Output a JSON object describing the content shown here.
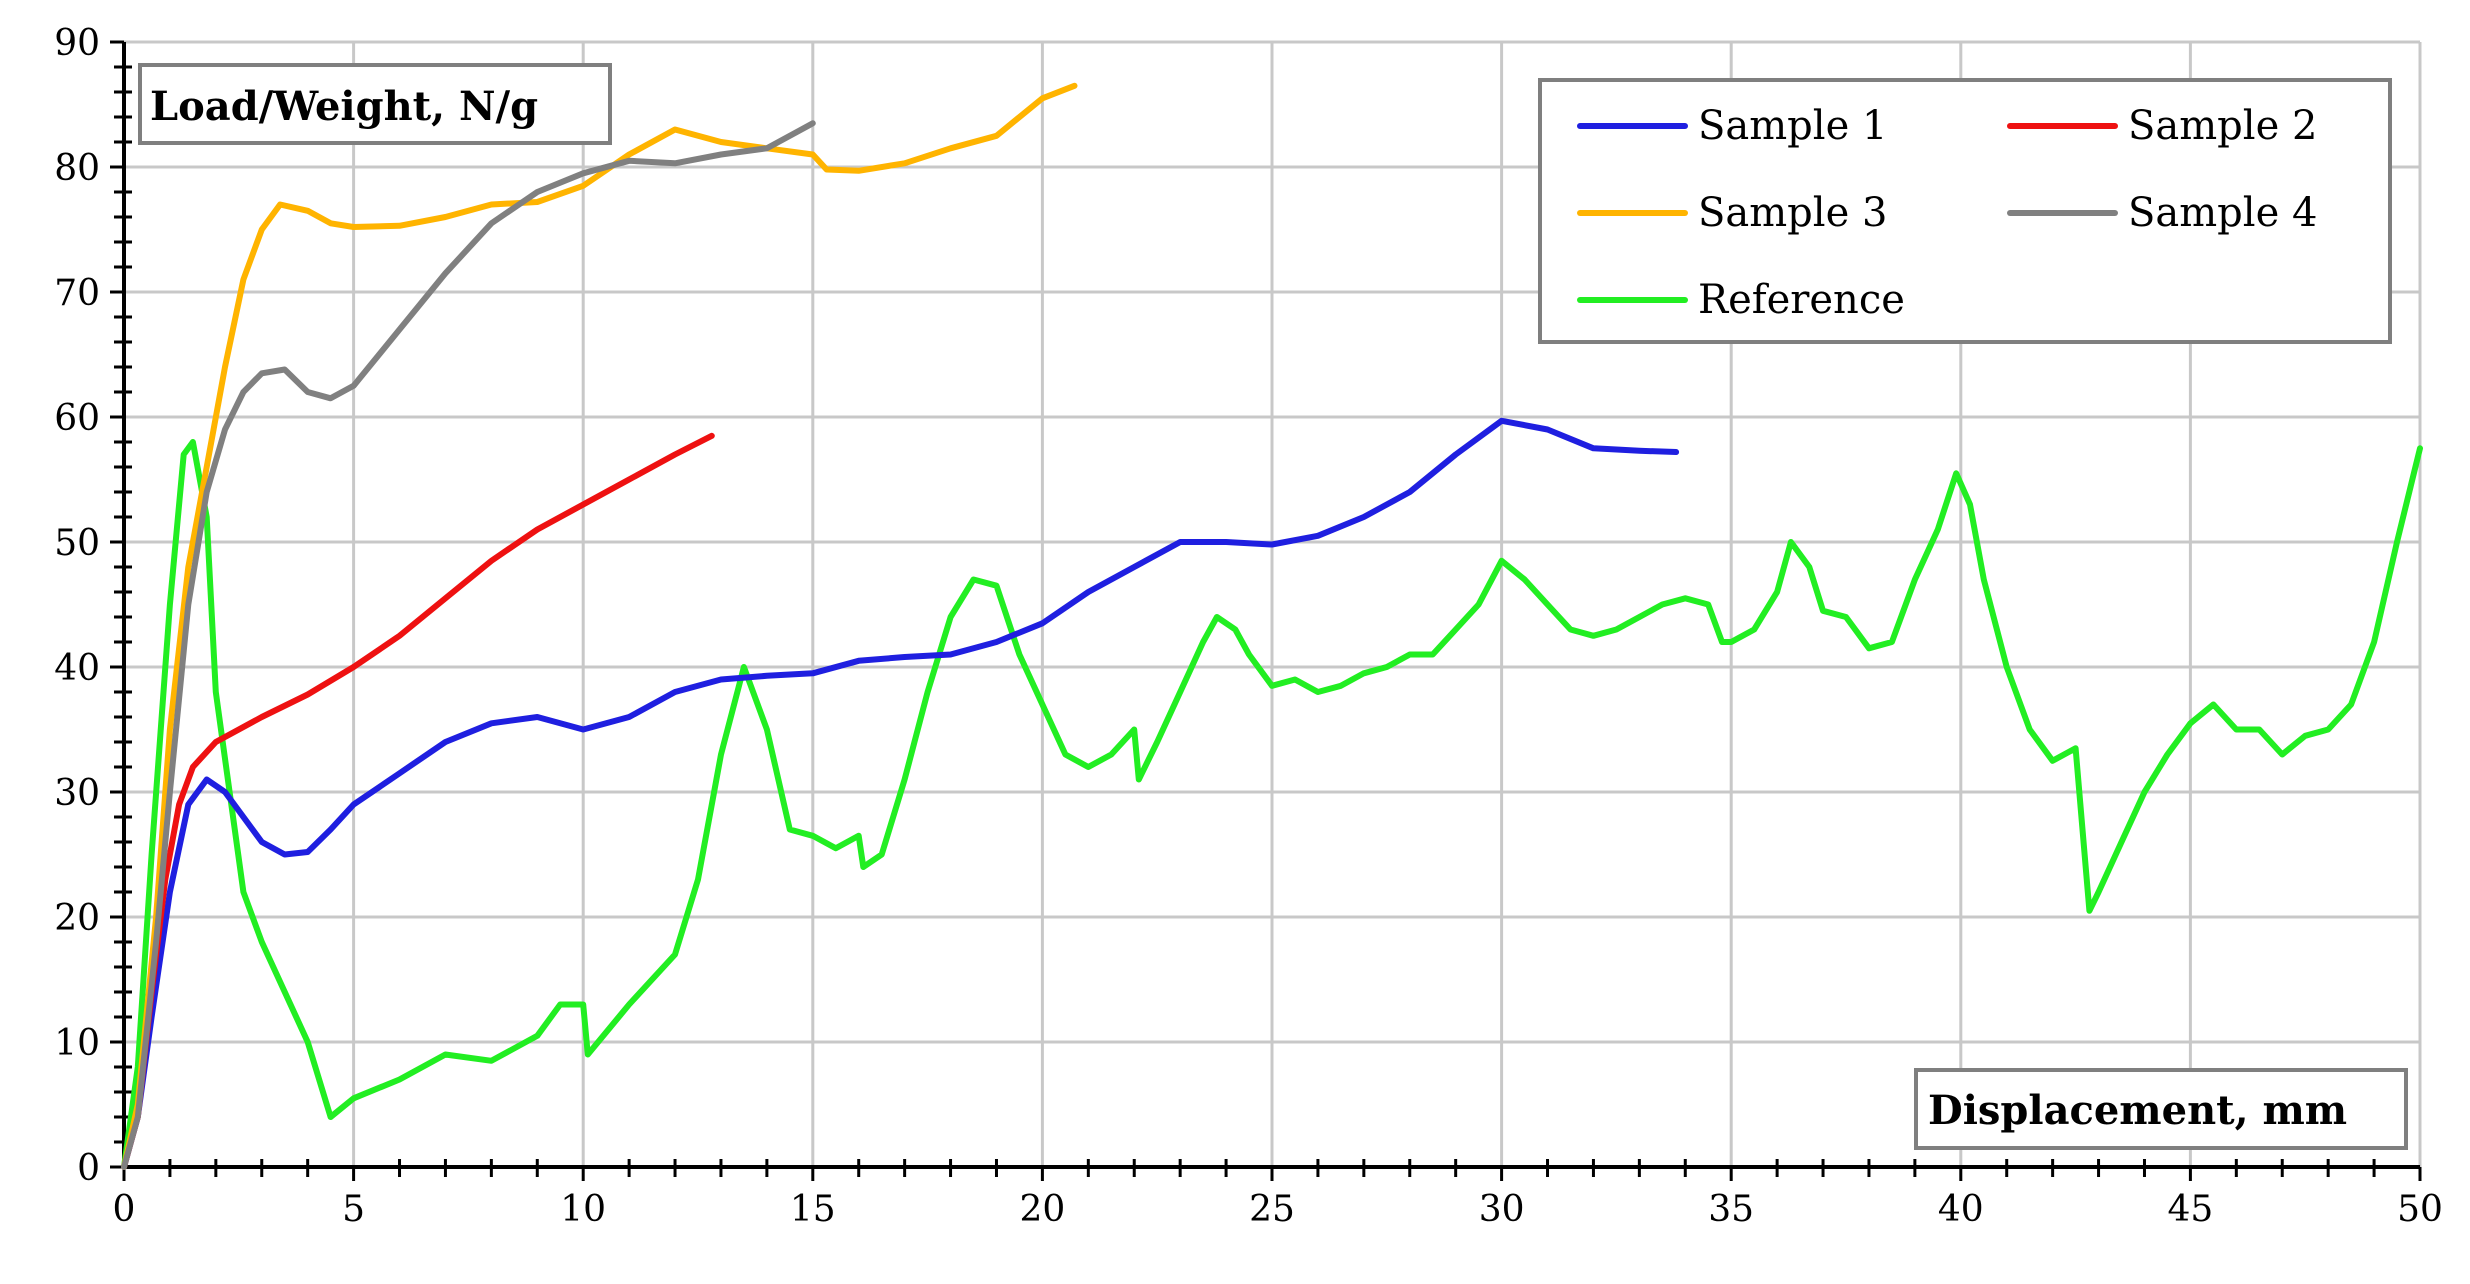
{
  "chart_data": {
    "type": "line",
    "xlabel": "Displacement, mm",
    "ylabel": "Load/Weight, N/g",
    "xlim": [
      0,
      50
    ],
    "ylim": [
      0,
      90
    ],
    "x_ticks": [
      "0",
      "5",
      "10",
      "15",
      "20",
      "25",
      "30",
      "35",
      "40",
      "45",
      "50"
    ],
    "y_ticks": [
      "0",
      "10",
      "20",
      "30",
      "40",
      "50",
      "60",
      "70",
      "80",
      "90"
    ],
    "grid": true,
    "legend_position": "top-right",
    "series": [
      {
        "name": "Sample 1",
        "color": "#1f1fe0",
        "points": [
          [
            0,
            0
          ],
          [
            0.3,
            4
          ],
          [
            0.6,
            12
          ],
          [
            1.0,
            22
          ],
          [
            1.4,
            29
          ],
          [
            1.8,
            31
          ],
          [
            2.2,
            30
          ],
          [
            2.6,
            28
          ],
          [
            3.0,
            26
          ],
          [
            3.5,
            25
          ],
          [
            4.0,
            25.2
          ],
          [
            4.5,
            27
          ],
          [
            5.0,
            29
          ],
          [
            6.0,
            31.5
          ],
          [
            7.0,
            34
          ],
          [
            8.0,
            35.5
          ],
          [
            9.0,
            36
          ],
          [
            10.0,
            35
          ],
          [
            11.0,
            36
          ],
          [
            12.0,
            38
          ],
          [
            13.0,
            39
          ],
          [
            14.0,
            39.3
          ],
          [
            15.0,
            39.5
          ],
          [
            16.0,
            40.5
          ],
          [
            17.0,
            40.8
          ],
          [
            18.0,
            41
          ],
          [
            19.0,
            42
          ],
          [
            20.0,
            43.5
          ],
          [
            21.0,
            46
          ],
          [
            22.0,
            48
          ],
          [
            23.0,
            50
          ],
          [
            24.0,
            50
          ],
          [
            25.0,
            49.8
          ],
          [
            26.0,
            50.5
          ],
          [
            27.0,
            52
          ],
          [
            28.0,
            54
          ],
          [
            29.0,
            57
          ],
          [
            30.0,
            59.7
          ],
          [
            31.0,
            59
          ],
          [
            32.0,
            57.5
          ],
          [
            33.0,
            57.3
          ],
          [
            33.8,
            57.2
          ]
        ]
      },
      {
        "name": "Sample 2",
        "color": "#ee1111",
        "points": [
          [
            0,
            0
          ],
          [
            0.3,
            4
          ],
          [
            0.6,
            14
          ],
          [
            0.9,
            23
          ],
          [
            1.2,
            29
          ],
          [
            1.5,
            32
          ],
          [
            2.0,
            34
          ],
          [
            3.0,
            36
          ],
          [
            4.0,
            37.8
          ],
          [
            5.0,
            40
          ],
          [
            6.0,
            42.5
          ],
          [
            7.0,
            45.5
          ],
          [
            8.0,
            48.5
          ],
          [
            9.0,
            51
          ],
          [
            10.0,
            53
          ],
          [
            11.0,
            55
          ],
          [
            12.0,
            57
          ],
          [
            12.8,
            58.5
          ]
        ]
      },
      {
        "name": "Sample 3",
        "color": "#ffb400",
        "points": [
          [
            0,
            0
          ],
          [
            0.3,
            5
          ],
          [
            0.7,
            20
          ],
          [
            1.0,
            35
          ],
          [
            1.4,
            48
          ],
          [
            1.8,
            56
          ],
          [
            2.2,
            64
          ],
          [
            2.6,
            71
          ],
          [
            3.0,
            75
          ],
          [
            3.4,
            77
          ],
          [
            4.0,
            76.5
          ],
          [
            4.5,
            75.5
          ],
          [
            5.0,
            75.2
          ],
          [
            6.0,
            75.3
          ],
          [
            7.0,
            76
          ],
          [
            8.0,
            77
          ],
          [
            9.0,
            77.2
          ],
          [
            10.0,
            78.5
          ],
          [
            11.0,
            81
          ],
          [
            12.0,
            83
          ],
          [
            13.0,
            82
          ],
          [
            14.0,
            81.5
          ],
          [
            15.0,
            81
          ],
          [
            15.3,
            79.8
          ],
          [
            16.0,
            79.7
          ],
          [
            17.0,
            80.3
          ],
          [
            18.0,
            81.5
          ],
          [
            19.0,
            82.5
          ],
          [
            20.0,
            85.5
          ],
          [
            20.7,
            86.5
          ]
        ]
      },
      {
        "name": "Sample 4",
        "color": "#808080",
        "points": [
          [
            0,
            0
          ],
          [
            0.3,
            4
          ],
          [
            0.7,
            18
          ],
          [
            1.0,
            30
          ],
          [
            1.4,
            45
          ],
          [
            1.8,
            54
          ],
          [
            2.2,
            59
          ],
          [
            2.6,
            62
          ],
          [
            3.0,
            63.5
          ],
          [
            3.5,
            63.8
          ],
          [
            4.0,
            62
          ],
          [
            4.5,
            61.5
          ],
          [
            5.0,
            62.5
          ],
          [
            6.0,
            67
          ],
          [
            7.0,
            71.5
          ],
          [
            8.0,
            75.5
          ],
          [
            9.0,
            78
          ],
          [
            10.0,
            79.5
          ],
          [
            11.0,
            80.5
          ],
          [
            12.0,
            80.3
          ],
          [
            13.0,
            81
          ],
          [
            14.0,
            81.5
          ],
          [
            15.0,
            83.5
          ]
        ]
      },
      {
        "name": "Reference",
        "color": "#22ee22",
        "points": [
          [
            0,
            0
          ],
          [
            0.3,
            8
          ],
          [
            0.6,
            25
          ],
          [
            1.0,
            45
          ],
          [
            1.3,
            57
          ],
          [
            1.5,
            58
          ],
          [
            1.8,
            52
          ],
          [
            2.0,
            38
          ],
          [
            2.3,
            30
          ],
          [
            2.6,
            22
          ],
          [
            3.0,
            18
          ],
          [
            4.0,
            10
          ],
          [
            4.5,
            4
          ],
          [
            5.0,
            5.5
          ],
          [
            6.0,
            7
          ],
          [
            7.0,
            9
          ],
          [
            8.0,
            8.5
          ],
          [
            9.0,
            10.5
          ],
          [
            9.5,
            13
          ],
          [
            10.0,
            13
          ],
          [
            10.1,
            9
          ],
          [
            11.0,
            13
          ],
          [
            12.0,
            17
          ],
          [
            12.5,
            23
          ],
          [
            13.0,
            33
          ],
          [
            13.5,
            40
          ],
          [
            14.0,
            35
          ],
          [
            14.5,
            27
          ],
          [
            15.0,
            26.5
          ],
          [
            15.5,
            25.5
          ],
          [
            16.0,
            26.5
          ],
          [
            16.1,
            24
          ],
          [
            16.5,
            25
          ],
          [
            17.0,
            31
          ],
          [
            17.5,
            38
          ],
          [
            18.0,
            44
          ],
          [
            18.5,
            47
          ],
          [
            19.0,
            46.5
          ],
          [
            19.5,
            41
          ],
          [
            20.0,
            37
          ],
          [
            20.5,
            33
          ],
          [
            21.0,
            32
          ],
          [
            21.5,
            33
          ],
          [
            22.0,
            35
          ],
          [
            22.1,
            31
          ],
          [
            22.5,
            34
          ],
          [
            23.0,
            38
          ],
          [
            23.5,
            42
          ],
          [
            23.8,
            44
          ],
          [
            24.2,
            43
          ],
          [
            24.5,
            41
          ],
          [
            25.0,
            38.5
          ],
          [
            25.5,
            39
          ],
          [
            26.0,
            38
          ],
          [
            26.5,
            38.5
          ],
          [
            27.0,
            39.5
          ],
          [
            27.5,
            40
          ],
          [
            28.0,
            41
          ],
          [
            28.5,
            41
          ],
          [
            29.0,
            43
          ],
          [
            29.5,
            45
          ],
          [
            30.0,
            48.5
          ],
          [
            30.5,
            47
          ],
          [
            31.0,
            45
          ],
          [
            31.5,
            43
          ],
          [
            32.0,
            42.5
          ],
          [
            32.5,
            43
          ],
          [
            33.0,
            44
          ],
          [
            33.5,
            45
          ],
          [
            34.0,
            45.5
          ],
          [
            34.5,
            45
          ],
          [
            34.8,
            42
          ],
          [
            35.0,
            42
          ],
          [
            35.5,
            43
          ],
          [
            36.0,
            46
          ],
          [
            36.3,
            50
          ],
          [
            36.7,
            48
          ],
          [
            37.0,
            44.5
          ],
          [
            37.5,
            44
          ],
          [
            38.0,
            41.5
          ],
          [
            38.5,
            42
          ],
          [
            39.0,
            47
          ],
          [
            39.5,
            51
          ],
          [
            39.9,
            55.5
          ],
          [
            40.2,
            53
          ],
          [
            40.5,
            47
          ],
          [
            41.0,
            40
          ],
          [
            41.5,
            35
          ],
          [
            42.0,
            32.5
          ],
          [
            42.5,
            33.5
          ],
          [
            42.8,
            20.5
          ],
          [
            43.0,
            22
          ],
          [
            43.5,
            26
          ],
          [
            44.0,
            30
          ],
          [
            44.5,
            33
          ],
          [
            45.0,
            35.5
          ],
          [
            45.5,
            37
          ],
          [
            46.0,
            35
          ],
          [
            46.5,
            35
          ],
          [
            47.0,
            33
          ],
          [
            47.5,
            34.5
          ],
          [
            48.0,
            35
          ],
          [
            48.5,
            37
          ],
          [
            49.0,
            42
          ],
          [
            49.5,
            50
          ],
          [
            50.0,
            57.5
          ]
        ]
      }
    ]
  }
}
